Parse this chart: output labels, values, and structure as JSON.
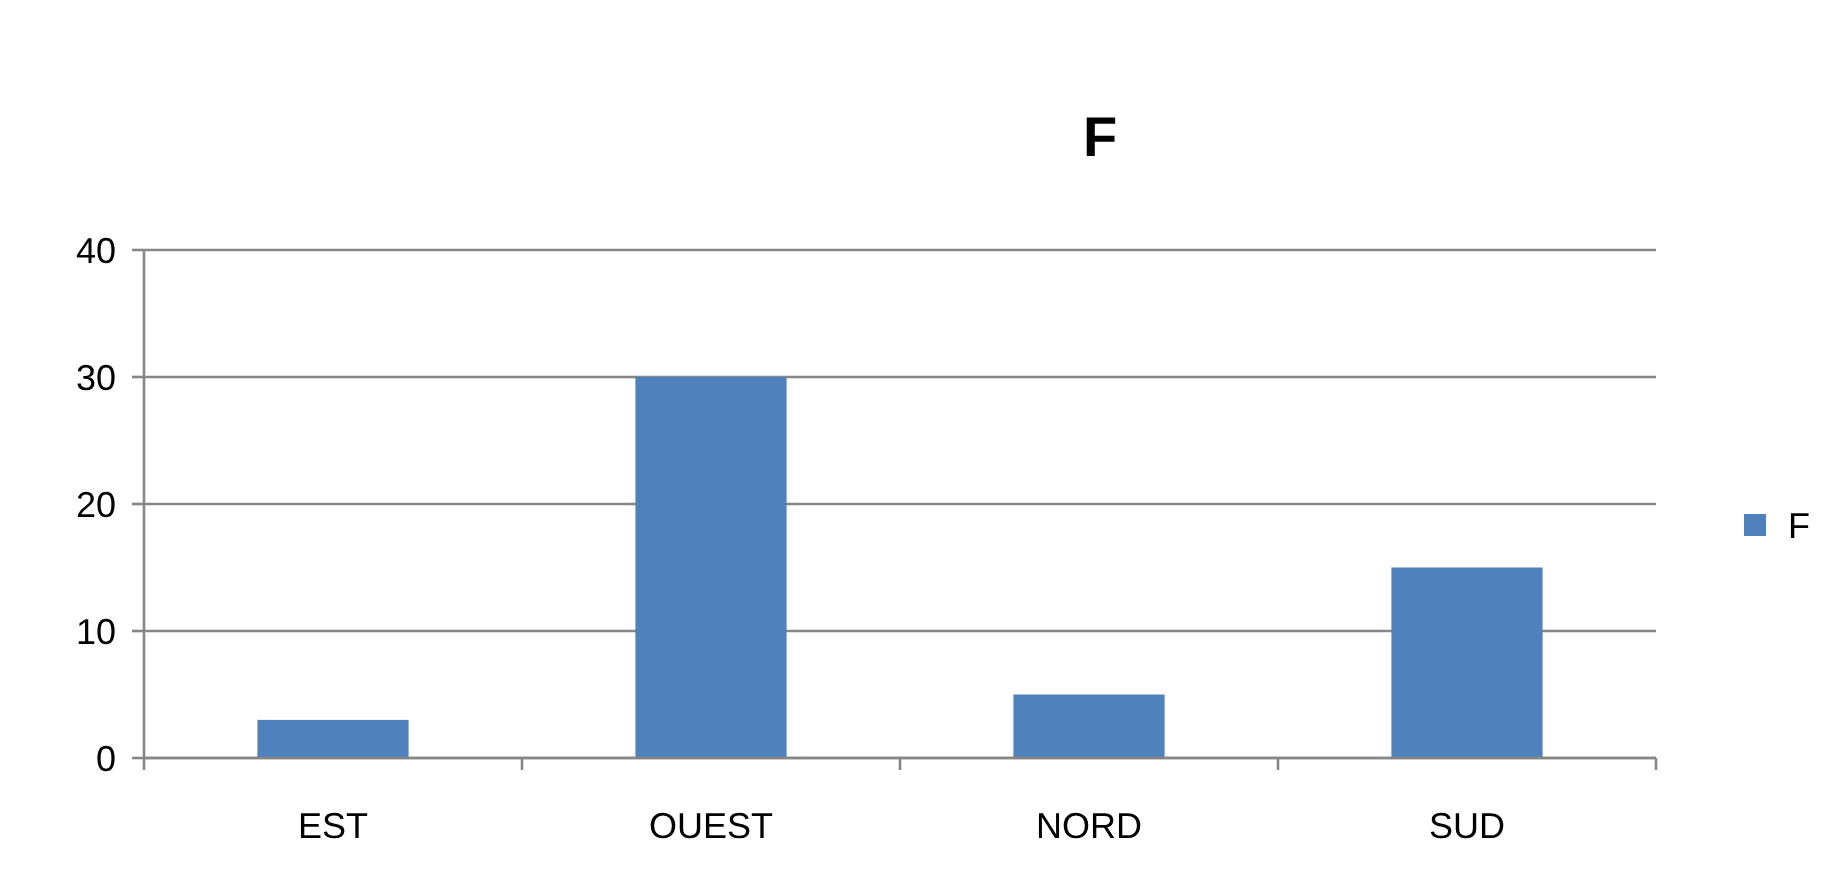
{
  "chart_data": {
    "type": "bar",
    "title": "F",
    "categories": [
      "EST",
      "OUEST",
      "NORD",
      "SUD"
    ],
    "series": [
      {
        "name": "F",
        "color": "#4f81bd",
        "values": [
          3,
          30,
          5,
          15
        ]
      }
    ],
    "ylim": [
      0,
      40
    ],
    "yticks": [
      0,
      10,
      20,
      30,
      40
    ],
    "grid": "y",
    "legend": "right"
  }
}
